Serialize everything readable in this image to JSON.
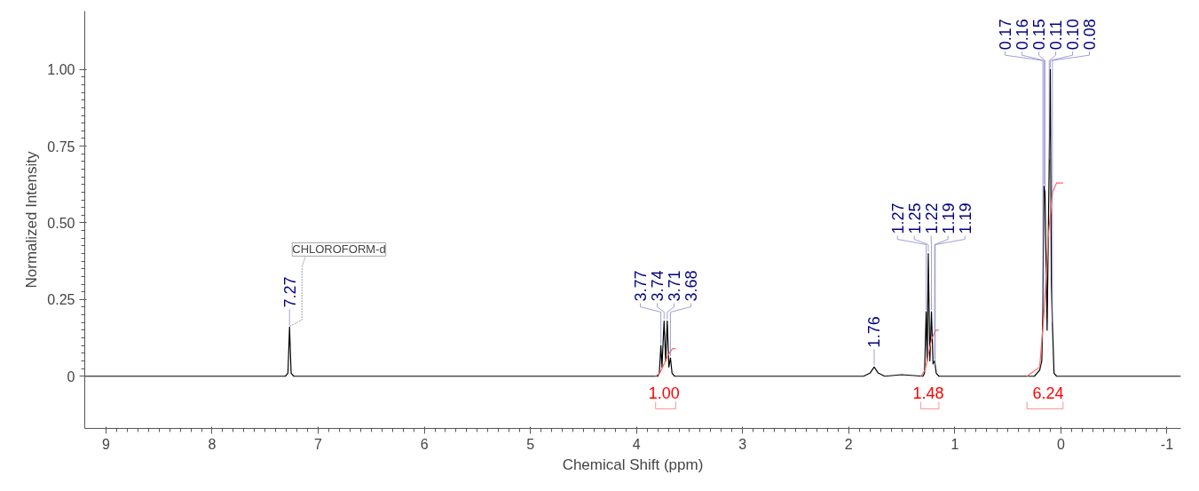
{
  "chart_data": {
    "type": "line",
    "xlabel": "Chemical Shift (ppm)",
    "ylabel": "Normalized Intensity",
    "x": [
      9.2,
      7.31,
      7.285,
      7.27,
      7.255,
      7.23,
      3.8,
      3.785,
      3.77,
      3.76,
      3.74,
      3.725,
      3.71,
      3.695,
      3.68,
      3.665,
      3.64,
      1.86,
      1.8,
      1.76,
      1.72,
      1.66,
      1.5,
      1.3,
      1.285,
      1.27,
      1.26,
      1.25,
      1.235,
      1.22,
      1.205,
      1.19,
      1.175,
      1.15,
      0.25,
      0.2,
      0.18,
      0.17,
      0.16,
      0.15,
      0.13,
      0.11,
      0.1,
      0.09,
      0.08,
      0.065,
      0.04,
      -1.13
    ],
    "series": [
      {
        "color": "#000000",
        "values": [
          0,
          0,
          0.01,
          0.16,
          0.01,
          0,
          0,
          0.01,
          0.1,
          0.03,
          0.18,
          0.05,
          0.18,
          0.03,
          0.06,
          0.01,
          0,
          0,
          0.01,
          0.03,
          0.01,
          0,
          0.005,
          0,
          0.01,
          0.21,
          0.05,
          0.4,
          0.05,
          0.21,
          0.04,
          0.05,
          0.01,
          0,
          0,
          0.02,
          0.05,
          0.21,
          0.62,
          0.6,
          0.15,
          0.7,
          1.0,
          0.3,
          0.17,
          0.01,
          0,
          0
        ]
      },
      {
        "color": "#ff6666",
        "x": [
          3.82,
          3.78,
          3.74,
          3.7,
          3.66,
          3.63
        ],
        "values": [
          0,
          0.01,
          0.04,
          0.07,
          0.09,
          0.09
        ]
      },
      {
        "color": "#ff6666",
        "x": [
          1.32,
          1.28,
          1.25,
          1.22,
          1.18,
          1.15
        ],
        "values": [
          0,
          0.02,
          0.07,
          0.12,
          0.15,
          0.15
        ]
      },
      {
        "color": "#ff6666",
        "x": [
          0.32,
          0.2,
          0.16,
          0.12,
          0.08,
          0.04,
          -0.02
        ],
        "values": [
          0,
          0.03,
          0.2,
          0.45,
          0.6,
          0.63,
          0.63
        ]
      }
    ],
    "xlim": [
      9.2,
      -1.13
    ],
    "xticks": [
      9,
      8,
      7,
      6,
      5,
      4,
      3,
      2,
      1,
      0,
      -1
    ],
    "ylim": [
      -0.17,
      1.19
    ],
    "yticks": [
      {
        "value": 0,
        "label": "0"
      },
      {
        "value": 0.25,
        "label": "0.25"
      },
      {
        "value": 0.5,
        "label": "0.50"
      },
      {
        "value": 0.75,
        "label": "0.75"
      },
      {
        "value": 1.0,
        "label": "1.00"
      }
    ],
    "grid": false,
    "marker": "none",
    "line_style": "solid",
    "annotations": [
      {
        "text": "7.27",
        "x": 7.27,
        "y": 0.16
      },
      {
        "text": "CHLOROFORM-d",
        "x": 7.27,
        "y": 0.16
      },
      {
        "text": "3.77",
        "x": 3.77,
        "y": 0.1
      },
      {
        "text": "3.74",
        "x": 3.74,
        "y": 0.18
      },
      {
        "text": "3.71",
        "x": 3.71,
        "y": 0.18
      },
      {
        "text": "3.68",
        "x": 3.68,
        "y": 0.06
      },
      {
        "text": "1.76",
        "x": 1.76,
        "y": 0.03
      },
      {
        "text": "1.27",
        "x": 1.27,
        "y": 0.21
      },
      {
        "text": "1.25",
        "x": 1.25,
        "y": 0.4
      },
      {
        "text": "1.22",
        "x": 1.22,
        "y": 0.21
      },
      {
        "text": "1.19",
        "x": 1.19,
        "y": 0.05
      },
      {
        "text": "1.19",
        "x": 1.185,
        "y": 0.03
      },
      {
        "text": "0.17",
        "x": 0.17,
        "y": 0.21
      },
      {
        "text": "0.16",
        "x": 0.16,
        "y": 0.62
      },
      {
        "text": "0.15",
        "x": 0.15,
        "y": 0.6
      },
      {
        "text": "0.11",
        "x": 0.11,
        "y": 0.7
      },
      {
        "text": "0.10",
        "x": 0.1,
        "y": 1.0
      },
      {
        "text": "0.08",
        "x": 0.08,
        "y": 0.17
      },
      {
        "text": "1.00",
        "x": 3.74,
        "y": 0.04
      },
      {
        "text": "1.48",
        "x": 1.25,
        "y": 0.07
      },
      {
        "text": "6.24",
        "x": 0.12,
        "y": 0.45
      }
    ]
  }
}
